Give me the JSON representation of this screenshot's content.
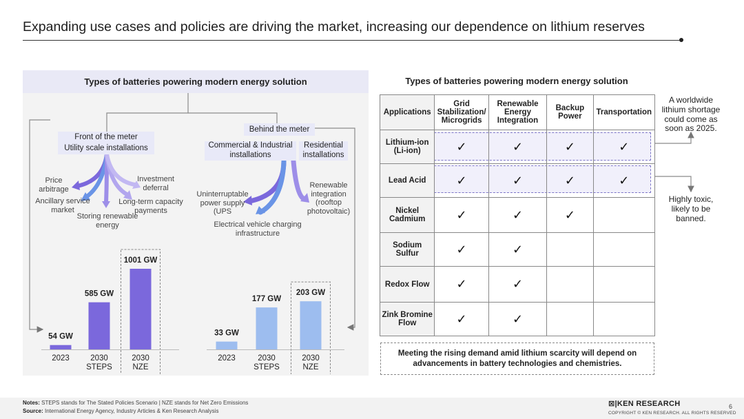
{
  "title": "Expanding use cases and policies are driving the market, increasing our dependence on lithium reserves",
  "left_panel": {
    "heading": "Types of batteries powering modern energy solution",
    "front": {
      "line1": "Front of the meter",
      "line2": "Utility scale installations",
      "uses": [
        "Price arbitrage",
        "Ancillary service market",
        "Storing renewable energy",
        "Long-term capacity payments",
        "Investment deferral"
      ]
    },
    "behind": {
      "label": "Behind the meter",
      "commercial": "Commercial & Industrial installations",
      "residential": "Residential installations",
      "uses": [
        "Uninterruptable power supply (UPS",
        "Electrical vehicle charging infrastructure",
        "Renewable integration (rooftop photovoltaic)"
      ]
    },
    "colors": {
      "bar_purple": "#7b68dc",
      "bar_blue": "#9dbdef",
      "arrow_purple": "#7b68dc",
      "arrow_blue": "#6a94e6"
    }
  },
  "chart_data": [
    {
      "type": "bar",
      "categories": [
        "2023",
        "2030 STEPS",
        "2030 NZE"
      ],
      "values": [
        54,
        585,
        1001
      ],
      "data_labels": [
        "54 GW",
        "585 GW",
        "1001 GW"
      ],
      "ylim": [
        0,
        1001
      ]
    },
    {
      "type": "bar",
      "categories": [
        "2023",
        "2030 STEPS",
        "2030 NZE"
      ],
      "values": [
        33,
        177,
        203
      ],
      "data_labels": [
        "33 GW",
        "177 GW",
        "203 GW"
      ],
      "ylim": [
        0,
        250
      ]
    }
  ],
  "right_panel": {
    "heading": "Types of batteries powering modern energy solution",
    "table": {
      "columns": [
        "Applications",
        "Grid Stabilization/ Microgrids",
        "Renewable Energy Integration",
        "Backup Power",
        "Transportation"
      ],
      "rows": [
        {
          "label": "Lithium-ion (Li-ion)",
          "checks": [
            true,
            true,
            true,
            true
          ]
        },
        {
          "label": "Lead Acid",
          "checks": [
            true,
            true,
            true,
            true
          ]
        },
        {
          "label": "Nickel Cadmium",
          "checks": [
            true,
            true,
            true,
            false
          ]
        },
        {
          "label": "Sodium Sulfur",
          "checks": [
            true,
            true,
            false,
            false
          ]
        },
        {
          "label": "Redox Flow",
          "checks": [
            true,
            true,
            false,
            false
          ]
        },
        {
          "label": "Zink Bromine Flow",
          "checks": [
            true,
            true,
            false,
            false
          ]
        }
      ]
    },
    "note_lithium": "A worldwide lithium shortage could come as soon as 2025.",
    "note_lead": "Highly toxic, likely to be banned.",
    "bottom_note": "Meeting the rising demand amid lithium scarcity will depend on advancements in battery technologies and chemistries."
  },
  "footer": {
    "notes_label": "Notes:",
    "notes_text": "STEPS stands for The Stated Policies Scenario  |   NZE stands for Net Zero Emissions",
    "source_label": "Source:",
    "source_text": "International Energy Agency, Industry Articles & Ken Research Analysis",
    "logo": "KEN RESEARCH",
    "copyright": "COPYRIGHT © KEN RESEARCH. ALL RIGHTS RESERVED",
    "page": "6"
  }
}
